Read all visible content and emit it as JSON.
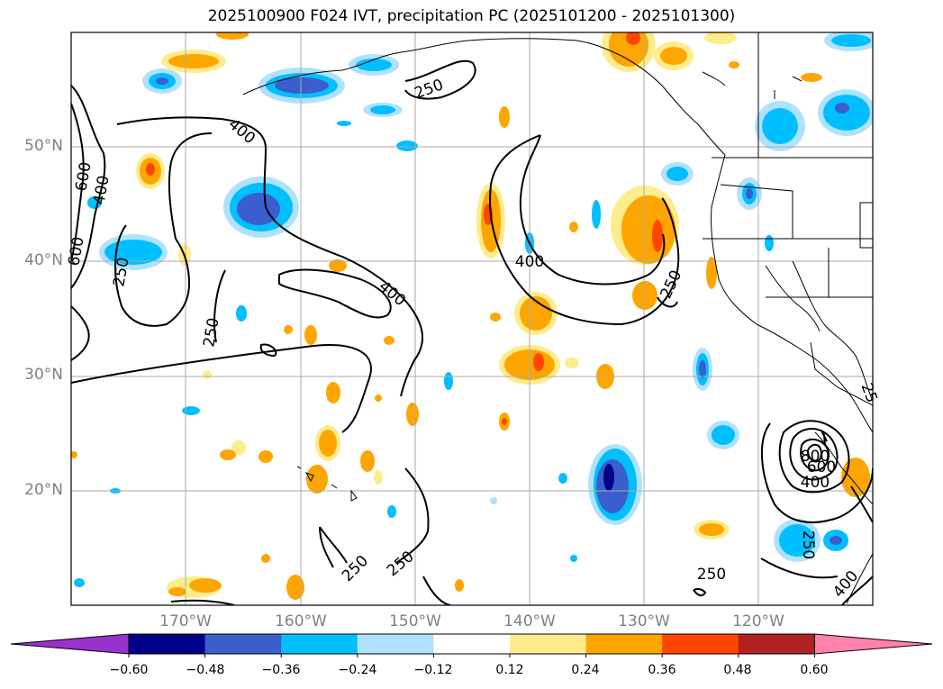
{
  "title": "2025100900 F024 IVT, precipitation PC (2025101200 - 2025101300)",
  "lat_labels": [
    "50°N",
    "40°N",
    "30°N",
    "20°N"
  ],
  "lon_labels": [
    "170°W",
    "160°W",
    "150°W",
    "140°W",
    "130°W",
    "120°W"
  ],
  "contour_labels": [
    "250",
    "400",
    "400",
    "600",
    "400",
    "600",
    "250",
    "250",
    "400",
    "400",
    "250",
    "250",
    "250",
    "250",
    "250",
    "800",
    "600",
    "400",
    "25",
    "250",
    "400"
  ],
  "colorbar": {
    "ticks": [
      "−0.60",
      "−0.48",
      "−0.36",
      "−0.24",
      "−0.12",
      "0.12",
      "0.24",
      "0.36",
      "0.48",
      "0.60"
    ],
    "colors": [
      "#9932cc",
      "#00008b",
      "#3a5fcd",
      "#00bfff",
      "#b0e2ff",
      "#ffffff",
      "#ffec8b",
      "#ffa500",
      "#ff4500",
      "#b22222",
      "#ff82ab"
    ]
  },
  "colors": {
    "grid": "#aaaaaa",
    "coast": "#000000",
    "label": "#808080"
  }
}
